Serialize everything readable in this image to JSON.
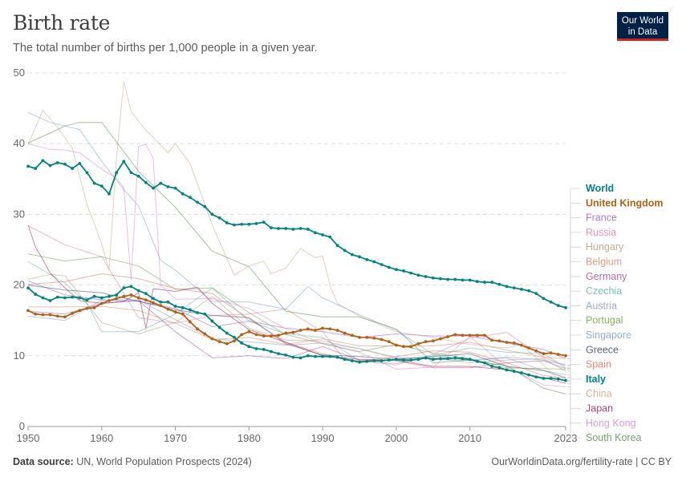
{
  "header": {
    "title": "Birth rate",
    "subtitle": "The total number of births per 1,000 people in a given year.",
    "logo_line1": "Our World",
    "logo_line2": "in Data"
  },
  "footer": {
    "source_label": "Data source:",
    "source_text": "UN, World Population Prospects (2024)",
    "attribution": "OurWorldinData.org/fertility-rate | CC BY"
  },
  "chart_data": {
    "type": "line",
    "title": "Birth rate",
    "xlabel": "",
    "ylabel": "",
    "xlim": [
      1950,
      2023
    ],
    "ylim": [
      0,
      50
    ],
    "x_ticks": [
      "1950",
      "1960",
      "1970",
      "1980",
      "1990",
      "2000",
      "2010",
      "2023"
    ],
    "y_ticks": [
      "0",
      "10",
      "20",
      "30",
      "40",
      "50"
    ],
    "grid": "horizontal dashed",
    "legend": "right",
    "series": [
      {
        "name": "World",
        "color": "#00847e",
        "bold": true,
        "markers": true,
        "x": [
          1950,
          1951,
          1952,
          1953,
          1954,
          1955,
          1956,
          1957,
          1958,
          1959,
          1960,
          1961,
          1962,
          1963,
          1964,
          1965,
          1966,
          1967,
          1968,
          1969,
          1970,
          1971,
          1972,
          1973,
          1974,
          1975,
          1976,
          1977,
          1978,
          1979,
          1980,
          1981,
          1982,
          1983,
          1984,
          1985,
          1986,
          1987,
          1988,
          1989,
          1990,
          1991,
          1992,
          1993,
          1994,
          1995,
          1996,
          1997,
          1998,
          1999,
          2000,
          2001,
          2002,
          2003,
          2004,
          2005,
          2006,
          2007,
          2008,
          2009,
          2010,
          2011,
          2012,
          2013,
          2014,
          2015,
          2016,
          2017,
          2018,
          2019,
          2020,
          2021,
          2022,
          2023
        ],
        "y": [
          36.8,
          36.5,
          37.6,
          36.9,
          37.3,
          37.1,
          36.5,
          37.2,
          35.9,
          34.4,
          34.0,
          32.9,
          35.9,
          37.5,
          35.9,
          35.4,
          34.5,
          33.7,
          34.4,
          33.9,
          33.7,
          32.9,
          32.4,
          31.7,
          31.1,
          30.0,
          29.5,
          28.8,
          28.5,
          28.6,
          28.6,
          28.7,
          28.9,
          28.1,
          28.0,
          28.0,
          27.9,
          28.0,
          27.9,
          27.4,
          27.1,
          26.8,
          25.6,
          24.9,
          24.3,
          24.0,
          23.6,
          23.3,
          22.9,
          22.5,
          22.2,
          22.0,
          21.7,
          21.4,
          21.2,
          21.0,
          20.9,
          20.8,
          20.8,
          20.7,
          20.7,
          20.5,
          20.4,
          20.4,
          20.1,
          19.8,
          19.6,
          19.4,
          19.2,
          18.8,
          18.1,
          17.6,
          17.1,
          16.8
        ]
      },
      {
        "name": "United Kingdom",
        "color": "#b16214",
        "bold": true,
        "markers": true,
        "x": [
          1950,
          1951,
          1952,
          1953,
          1954,
          1955,
          1956,
          1957,
          1958,
          1959,
          1960,
          1961,
          1962,
          1963,
          1964,
          1965,
          1966,
          1967,
          1968,
          1969,
          1970,
          1971,
          1972,
          1973,
          1974,
          1975,
          1976,
          1977,
          1978,
          1979,
          1980,
          1981,
          1982,
          1983,
          1984,
          1985,
          1986,
          1987,
          1988,
          1989,
          1990,
          1991,
          1992,
          1993,
          1994,
          1995,
          1996,
          1997,
          1998,
          1999,
          2000,
          2001,
          2002,
          2003,
          2004,
          2005,
          2006,
          2007,
          2008,
          2009,
          2010,
          2011,
          2012,
          2013,
          2014,
          2015,
          2016,
          2017,
          2018,
          2019,
          2020,
          2021,
          2022,
          2023
        ],
        "y": [
          16.4,
          15.9,
          15.8,
          15.8,
          15.6,
          15.5,
          16.0,
          16.4,
          16.7,
          16.8,
          17.4,
          17.8,
          18.1,
          18.4,
          18.6,
          18.2,
          17.9,
          17.5,
          17.1,
          16.6,
          16.2,
          15.9,
          14.8,
          13.8,
          13.1,
          12.4,
          12.0,
          11.7,
          12.1,
          13.0,
          13.4,
          13.0,
          12.8,
          12.8,
          12.9,
          13.2,
          13.3,
          13.6,
          13.8,
          13.6,
          13.9,
          13.8,
          13.6,
          13.2,
          12.9,
          12.6,
          12.6,
          12.5,
          12.3,
          12.0,
          11.5,
          11.3,
          11.3,
          11.7,
          12.0,
          12.1,
          12.4,
          12.7,
          13.0,
          12.9,
          12.9,
          12.9,
          12.9,
          12.2,
          12.1,
          11.9,
          11.8,
          11.5,
          11.1,
          10.7,
          10.3,
          10.4,
          10.2,
          10.0
        ]
      },
      {
        "name": "France",
        "color": "#9a5fd0",
        "x": [
          1950,
          1955,
          1960,
          1965,
          1970,
          1975,
          1980,
          1985,
          1990,
          1995,
          2000,
          2005,
          2010,
          2015,
          2020,
          2023
        ],
        "y": [
          20.6,
          18.6,
          17.9,
          17.7,
          16.7,
          14.1,
          14.9,
          13.9,
          13.4,
          12.6,
          13.1,
          12.8,
          12.8,
          11.8,
          10.9,
          9.6
        ]
      },
      {
        "name": "Russia",
        "color": "#e6809e",
        "x": [
          1950,
          1955,
          1960,
          1965,
          1970,
          1975,
          1980,
          1985,
          1990,
          1993,
          1995,
          2000,
          2005,
          2010,
          2015,
          2020,
          2023
        ],
        "y": [
          28.4,
          25.7,
          24.0,
          15.4,
          14.6,
          15.7,
          15.9,
          16.6,
          13.4,
          9.4,
          9.3,
          8.7,
          10.2,
          12.5,
          13.3,
          9.8,
          8.6
        ]
      },
      {
        "name": "Hungary",
        "color": "#c19a7e",
        "x": [
          1950,
          1953,
          1955,
          1960,
          1965,
          1970,
          1975,
          1980,
          1985,
          1990,
          1995,
          2000,
          2005,
          2010,
          2015,
          2020,
          2023
        ],
        "y": [
          20.8,
          21.5,
          21.3,
          14.7,
          13.1,
          14.7,
          18.4,
          13.9,
          12.2,
          12.1,
          11.0,
          9.6,
          9.7,
          9.0,
          9.4,
          9.6,
          7.8
        ]
      },
      {
        "name": "Belgium",
        "color": "#d98b6c",
        "x": [
          1950,
          1955,
          1960,
          1965,
          1970,
          1975,
          1980,
          1985,
          1990,
          1995,
          2000,
          2005,
          2010,
          2015,
          2020,
          2023
        ],
        "y": [
          16.9,
          16.9,
          17.0,
          16.4,
          14.6,
          12.3,
          12.6,
          11.6,
          12.4,
          11.4,
          11.4,
          11.4,
          11.9,
          10.8,
          9.8,
          9.6
        ]
      },
      {
        "name": "Germany",
        "color": "#a2559c",
        "x": [
          1950,
          1955,
          1960,
          1965,
          1970,
          1975,
          1980,
          1985,
          1990,
          1995,
          2000,
          2005,
          2010,
          2015,
          2020,
          2023
        ],
        "y": [
          16.3,
          15.9,
          17.4,
          17.8,
          13.4,
          9.7,
          10.0,
          9.6,
          11.3,
          9.4,
          9.3,
          8.3,
          8.3,
          9.0,
          9.3,
          8.2
        ]
      },
      {
        "name": "Czechia",
        "color": "#5ab8a6",
        "x": [
          1950,
          1955,
          1958,
          1960,
          1965,
          1970,
          1975,
          1980,
          1985,
          1990,
          1995,
          2000,
          2005,
          2010,
          2015,
          2020,
          2023
        ],
        "y": [
          23.3,
          20.3,
          17.4,
          13.4,
          13.4,
          15.9,
          19.6,
          14.9,
          13.1,
          12.6,
          9.3,
          8.9,
          10.0,
          11.1,
          10.5,
          10.3,
          8.3
        ]
      },
      {
        "name": "Austria",
        "color": "#8c9bc7",
        "x": [
          1950,
          1955,
          1960,
          1965,
          1970,
          1975,
          1980,
          1985,
          1990,
          1995,
          2000,
          2005,
          2010,
          2015,
          2020,
          2023
        ],
        "y": [
          15.6,
          15.0,
          17.9,
          17.9,
          15.1,
          12.4,
          12.0,
          11.5,
          11.8,
          11.0,
          9.8,
          9.5,
          9.4,
          9.8,
          9.4,
          8.7
        ]
      },
      {
        "name": "Portugal",
        "color": "#70a640",
        "x": [
          1950,
          1955,
          1960,
          1965,
          1970,
          1975,
          1980,
          1985,
          1990,
          1995,
          2000,
          2005,
          2010,
          2015,
          2020,
          2023
        ],
        "y": [
          24.4,
          23.4,
          24.0,
          22.7,
          19.4,
          19.6,
          16.1,
          13.0,
          11.7,
          10.6,
          11.6,
          10.4,
          9.6,
          8.3,
          8.2,
          8.1
        ]
      },
      {
        "name": "Singapore",
        "color": "#7d9fd6",
        "x": [
          1950,
          1953,
          1955,
          1957,
          1960,
          1963,
          1965,
          1968,
          1970,
          1975,
          1980,
          1985,
          1988,
          1990,
          1995,
          2000,
          2005,
          2010,
          2015,
          2020,
          2023
        ],
        "y": [
          44.4,
          43.0,
          42.5,
          42.0,
          37.5,
          33.5,
          31.2,
          23.5,
          22.1,
          17.7,
          17.6,
          16.6,
          19.8,
          18.2,
          15.8,
          13.6,
          10.2,
          9.3,
          9.7,
          7.9,
          7.3
        ]
      },
      {
        "name": "Greece",
        "color": "#3c4e66",
        "x": [
          1950,
          1955,
          1960,
          1965,
          1970,
          1975,
          1980,
          1985,
          1990,
          1995,
          2000,
          2005,
          2010,
          2015,
          2020,
          2023
        ],
        "y": [
          20.0,
          19.3,
          18.9,
          17.7,
          16.5,
          15.7,
          15.4,
          11.7,
          10.1,
          9.9,
          9.5,
          9.9,
          10.3,
          8.5,
          7.9,
          6.9
        ]
      },
      {
        "name": "Spain",
        "color": "#e56e5a",
        "x": [
          1950,
          1955,
          1960,
          1965,
          1970,
          1975,
          1980,
          1985,
          1990,
          1995,
          2000,
          2005,
          2010,
          2015,
          2020,
          2023
        ],
        "y": [
          20.1,
          20.5,
          21.6,
          20.9,
          19.5,
          18.8,
          15.2,
          11.9,
          10.3,
          9.2,
          9.9,
          10.7,
          10.5,
          9.0,
          7.2,
          6.8
        ]
      },
      {
        "name": "Italy",
        "color": "#00847e",
        "bold": true,
        "markers": true,
        "x": [
          1950,
          1951,
          1952,
          1953,
          1954,
          1955,
          1956,
          1957,
          1958,
          1959,
          1960,
          1961,
          1962,
          1963,
          1964,
          1965,
          1966,
          1967,
          1968,
          1969,
          1970,
          1971,
          1972,
          1973,
          1974,
          1975,
          1976,
          1977,
          1978,
          1979,
          1980,
          1981,
          1982,
          1983,
          1984,
          1985,
          1986,
          1987,
          1988,
          1989,
          1990,
          1991,
          1992,
          1993,
          1994,
          1995,
          1996,
          1997,
          1998,
          1999,
          2000,
          2001,
          2002,
          2003,
          2004,
          2005,
          2006,
          2007,
          2008,
          2009,
          2010,
          2011,
          2012,
          2013,
          2014,
          2015,
          2016,
          2017,
          2018,
          2019,
          2020,
          2021,
          2022,
          2023
        ],
        "y": [
          19.6,
          18.7,
          18.2,
          17.8,
          18.3,
          18.2,
          18.3,
          18.2,
          17.9,
          18.4,
          18.2,
          18.4,
          18.6,
          19.6,
          19.8,
          19.2,
          18.8,
          18.1,
          17.6,
          17.6,
          17.0,
          16.8,
          16.5,
          16.1,
          15.9,
          14.9,
          14.0,
          13.2,
          12.6,
          11.8,
          11.3,
          11.0,
          10.9,
          10.6,
          10.3,
          10.1,
          9.8,
          9.7,
          10.0,
          9.9,
          9.9,
          9.9,
          9.8,
          9.5,
          9.3,
          9.1,
          9.2,
          9.3,
          9.3,
          9.4,
          9.5,
          9.4,
          9.4,
          9.5,
          9.7,
          9.5,
          9.6,
          9.6,
          9.7,
          9.6,
          9.5,
          9.2,
          9.0,
          8.5,
          8.3,
          8.0,
          7.8,
          7.6,
          7.3,
          7.0,
          6.8,
          6.8,
          6.7,
          6.5
        ]
      },
      {
        "name": "China",
        "color": "#c7ab86",
        "x": [
          1950,
          1952,
          1954,
          1956,
          1958,
          1959,
          1960,
          1961,
          1962,
          1963,
          1964,
          1965,
          1966,
          1967,
          1968,
          1969,
          1970,
          1972,
          1975,
          1978,
          1980,
          1982,
          1983,
          1985,
          1987,
          1988,
          1989,
          1990,
          1991,
          1992,
          1995,
          2000,
          2005,
          2010,
          2015,
          2017,
          2020,
          2021,
          2022,
          2023
        ],
        "y": [
          39.9,
          44.7,
          42.3,
          39.4,
          31.4,
          28.7,
          25.8,
          22.1,
          38.0,
          48.8,
          44.5,
          43.2,
          41.9,
          40.9,
          39.8,
          38.7,
          40.0,
          37.2,
          28.5,
          21.4,
          22.7,
          23.4,
          21.6,
          22.4,
          25.2,
          24.5,
          23.9,
          24.1,
          20.0,
          17.4,
          15.6,
          13.4,
          12.6,
          11.6,
          11.1,
          11.6,
          8.7,
          7.6,
          6.8,
          6.4
        ]
      },
      {
        "name": "Japan",
        "color": "#a2225e",
        "x": [
          1950,
          1951,
          1952,
          1953,
          1955,
          1957,
          1960,
          1963,
          1965,
          1966,
          1967,
          1970,
          1973,
          1975,
          1980,
          1985,
          1990,
          1995,
          2000,
          2005,
          2010,
          2015,
          2020,
          2023
        ],
        "y": [
          28.5,
          25.4,
          23.6,
          21.7,
          19.6,
          17.8,
          17.4,
          17.7,
          18.9,
          13.9,
          19.5,
          19.1,
          19.7,
          17.4,
          13.7,
          11.9,
          10.0,
          9.5,
          9.4,
          8.5,
          8.5,
          8.0,
          6.9,
          6.1
        ]
      },
      {
        "name": "Hong Kong",
        "color": "#d88ac3",
        "x": [
          1950,
          1953,
          1955,
          1957,
          1960,
          1962,
          1963,
          1964,
          1965,
          1966,
          1967,
          1968,
          1970,
          1975,
          1980,
          1985,
          1990,
          1995,
          2000,
          2005,
          2010,
          2015,
          2020,
          2023
        ],
        "y": [
          40.0,
          39.2,
          39.1,
          38.7,
          36.4,
          35.1,
          33.8,
          20.7,
          39.6,
          39.9,
          37.9,
          20.0,
          18.0,
          18.1,
          16.7,
          13.8,
          11.7,
          10.5,
          8.1,
          8.4,
          12.7,
          8.4,
          5.9,
          5.6
        ]
      },
      {
        "name": "South Korea",
        "color": "#5c8e4e",
        "x": [
          1950,
          1953,
          1955,
          1957,
          1960,
          1965,
          1970,
          1975,
          1980,
          1985,
          1990,
          1995,
          2000,
          2005,
          2010,
          2015,
          2020,
          2023
        ],
        "y": [
          40.1,
          41.5,
          42.5,
          43.0,
          43.0,
          36.1,
          31.0,
          24.8,
          22.6,
          16.3,
          15.5,
          15.5,
          13.8,
          9.0,
          9.4,
          8.6,
          5.4,
          4.6
        ]
      }
    ]
  }
}
